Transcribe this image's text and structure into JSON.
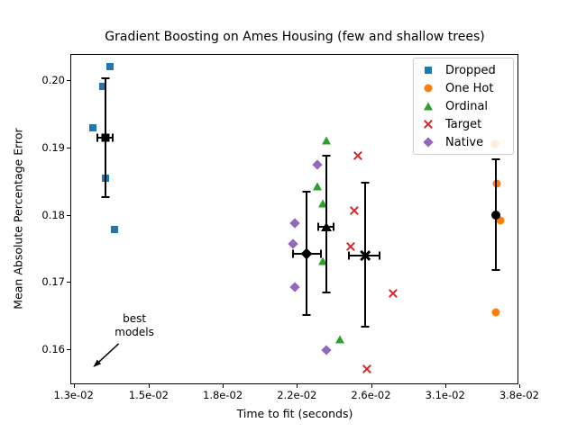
{
  "chart_data": {
    "type": "scatter",
    "title": "Gradient Boosting on Ames Housing (few and shallow trees)",
    "xlabel": "Time to fit (seconds)",
    "ylabel": "Mean Absolute Percentage Error",
    "x_scale": "log",
    "grid": false,
    "legend_position": "upper right",
    "x_ticks": [
      0.013,
      0.015,
      0.018,
      0.022,
      0.026,
      0.031,
      0.038
    ],
    "x_tick_labels": [
      "1.3e-02",
      "1.5e-02",
      "1.8e-02",
      "2.2e-02",
      "2.6e-02",
      "3.1e-02",
      "3.8e-02"
    ],
    "y_ticks": [
      0.2,
      0.19,
      0.18,
      0.17,
      0.16
    ],
    "y_tick_labels": [
      "0.20",
      "0.19",
      "0.18",
      "0.17",
      "0.16"
    ],
    "ylim": [
      0.155,
      0.204
    ],
    "series": [
      {
        "name": "Dropped",
        "marker": "square",
        "color": "#1f77b4",
        "points": [
          [
            0.01396,
            0.2021
          ],
          [
            0.01378,
            0.1991
          ],
          [
            0.01352,
            0.193
          ],
          [
            0.01385,
            0.1855
          ],
          [
            0.0141,
            0.1778
          ]
        ],
        "error_bar": {
          "x": 0.01384,
          "y": 0.1915,
          "y_top": 0.2003,
          "y_bottom": 0.1826,
          "x_left": 0.01364,
          "x_right": 0.01404
        }
      },
      {
        "name": "One Hot",
        "marker": "circle",
        "color": "#ff7f0e",
        "points": [
          [
            0.0357,
            0.1905
          ],
          [
            0.0359,
            0.1847
          ],
          [
            0.0362,
            0.1791
          ],
          [
            0.0358,
            0.1655
          ]
        ],
        "error_bar": {
          "x": 0.0358,
          "y": 0.18,
          "y_top": 0.1883,
          "y_bottom": 0.1718,
          "x_left": 0.0357,
          "x_right": 0.0359
        }
      },
      {
        "name": "Ordinal",
        "marker": "triangle",
        "color": "#2ca02c",
        "points": [
          [
            0.0236,
            0.1911
          ],
          [
            0.0231,
            0.1843
          ],
          [
            0.0234,
            0.1817
          ],
          [
            0.0234,
            0.1731
          ],
          [
            0.0243,
            0.1614
          ]
        ],
        "error_bar": {
          "x": 0.0236,
          "y": 0.1782,
          "y_top": 0.1888,
          "y_bottom": 0.1684,
          "x_left": 0.02315,
          "x_right": 0.024
        }
      },
      {
        "name": "Target",
        "marker": "x",
        "color": "#d62728",
        "points": [
          [
            0.0253,
            0.1888
          ],
          [
            0.0251,
            0.1806
          ],
          [
            0.0249,
            0.1753
          ],
          [
            0.0275,
            0.1683
          ],
          [
            0.0258,
            0.157
          ]
        ],
        "error_bar": {
          "x": 0.0257,
          "y": 0.1739,
          "y_top": 0.1848,
          "y_bottom": 0.1634,
          "x_left": 0.0248,
          "x_right": 0.0266
        }
      },
      {
        "name": "Native",
        "marker": "diamond",
        "color": "#9467bd",
        "points": [
          [
            0.0231,
            0.1874
          ],
          [
            0.0219,
            0.1787
          ],
          [
            0.0218,
            0.1757
          ],
          [
            0.0219,
            0.1692
          ],
          [
            0.0236,
            0.1599
          ]
        ],
        "error_bar": {
          "x": 0.0225,
          "y": 0.1742,
          "y_top": 0.1834,
          "y_bottom": 0.1651,
          "x_left": 0.0218,
          "x_right": 0.0233
        }
      }
    ],
    "annotation": {
      "text_lines": [
        "best",
        "models"
      ],
      "text_xy": [
        0.01462,
        0.1635
      ],
      "arrow_from_xy": [
        0.0142,
        0.1608
      ],
      "arrow_to_xy": [
        0.01352,
        0.1573
      ]
    },
    "summary_marker_color": "#000000"
  }
}
